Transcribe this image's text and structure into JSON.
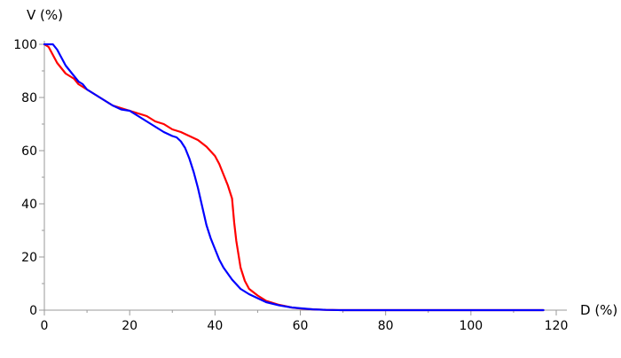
{
  "chart_data": {
    "type": "line",
    "xlabel": "D (%)",
    "ylabel": "V (%)",
    "xlim": [
      0,
      120
    ],
    "ylim": [
      0,
      100
    ],
    "xticks": [
      0,
      20,
      40,
      60,
      80,
      100,
      120
    ],
    "yticks": [
      0,
      20,
      40,
      60,
      80,
      100
    ],
    "grid": false,
    "legend": "none",
    "series": [
      {
        "color": "#ff0000",
        "x": [
          0,
          1,
          2,
          3,
          4,
          5,
          6,
          7,
          8,
          9,
          10,
          12,
          14,
          16,
          18,
          20,
          22,
          24,
          26,
          28,
          30,
          32,
          34,
          36,
          38,
          40,
          41,
          42,
          43,
          44,
          44.5,
          45,
          46,
          47,
          48,
          50,
          52,
          55,
          58,
          60,
          63,
          66,
          70,
          80,
          90,
          100,
          110,
          117
        ],
        "y": [
          100,
          99,
          96,
          93,
          91,
          89,
          88,
          87,
          85,
          84,
          83,
          81,
          79,
          77,
          76,
          75,
          74,
          73,
          71,
          70,
          68,
          67,
          65.5,
          64,
          61.5,
          58,
          55,
          51,
          47,
          42,
          33,
          26,
          16,
          11,
          8,
          5.5,
          3.5,
          2,
          1,
          0.6,
          0.3,
          0.1,
          0,
          0,
          0,
          0,
          0,
          0
        ]
      },
      {
        "color": "#0000ff",
        "x": [
          0,
          1,
          2,
          3,
          4,
          5,
          6,
          7,
          8,
          9,
          10,
          12,
          14,
          16,
          18,
          20,
          22,
          24,
          26,
          28,
          30,
          31,
          32,
          33,
          34,
          35,
          36,
          37,
          38,
          39,
          40,
          41,
          42,
          44,
          46,
          48,
          50,
          52,
          55,
          58,
          60,
          63,
          66,
          70,
          80,
          90,
          100,
          110,
          117
        ],
        "y": [
          100,
          100,
          100,
          98,
          95,
          92,
          90,
          88,
          86,
          85,
          83,
          81,
          79,
          77,
          75.5,
          75,
          73,
          71,
          69,
          67,
          65.5,
          65,
          63.5,
          61,
          57,
          52,
          46,
          39,
          32,
          27,
          23,
          19,
          16,
          11.5,
          8,
          6,
          4.5,
          3,
          1.8,
          1,
          0.7,
          0.3,
          0.1,
          0,
          0,
          0,
          0,
          0,
          0
        ]
      }
    ]
  }
}
